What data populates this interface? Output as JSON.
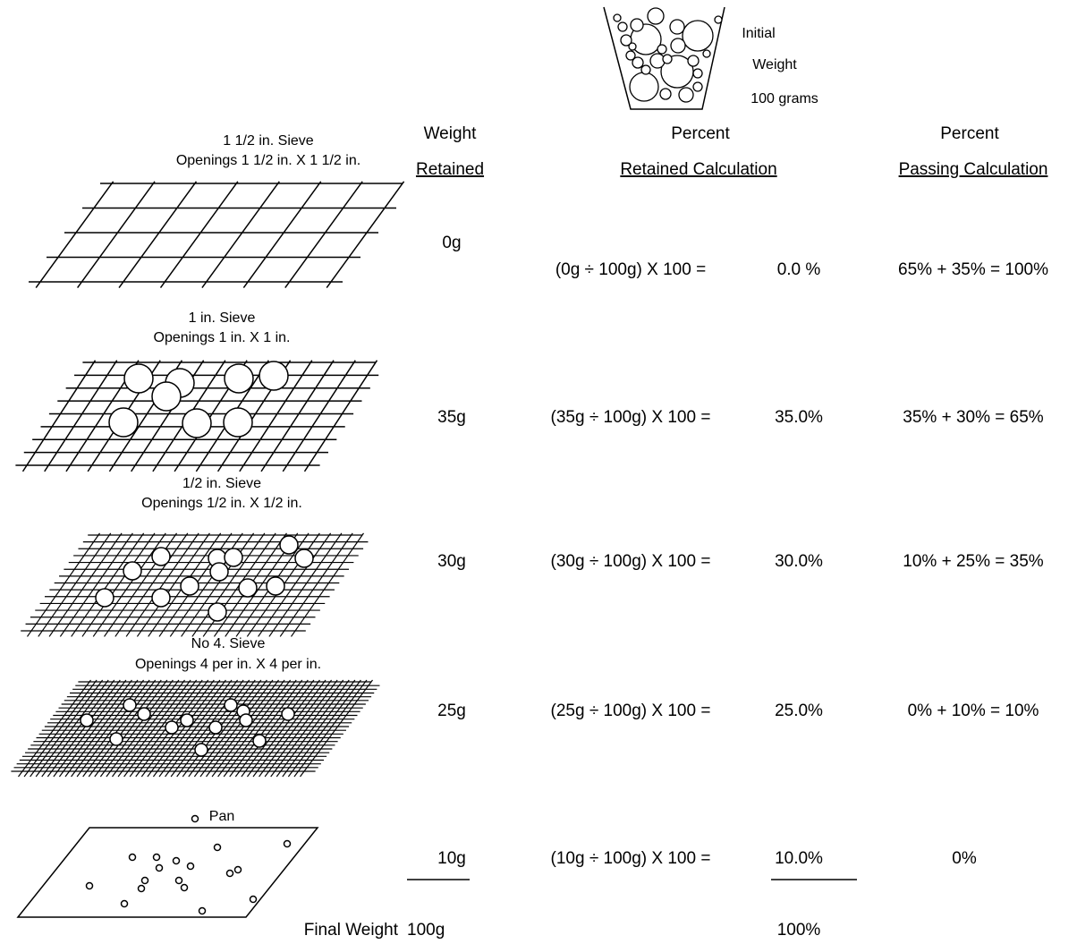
{
  "beaker": {
    "lines": [
      "Initial",
      "Weight",
      "100 grams"
    ]
  },
  "headers": {
    "weight": [
      "Weight",
      "Retained"
    ],
    "retained": [
      "Percent",
      "Retained Calculation"
    ],
    "passing": [
      "Percent",
      "Passing Calculation"
    ]
  },
  "sieves": [
    {
      "name": "1 1/2 in. Sieve",
      "openings": "Openings 1 1/2 in. X 1 1/2 in.",
      "retained": "0g",
      "calculation": "(0g ÷ 100g) X 100 =",
      "percent_retained": "0.0 %",
      "passing": "65% + 35% = 100%"
    },
    {
      "name": "1 in. Sieve",
      "openings": "Openings 1 in. X 1 in.",
      "retained": "35g",
      "calculation": "(35g ÷ 100g) X 100 =",
      "percent_retained": "35.0%",
      "passing": "35% + 30%  =  65%"
    },
    {
      "name": "1/2 in. Sieve",
      "openings": "Openings 1/2 in. X 1/2 in.",
      "retained": "30g",
      "calculation": "(30g ÷ 100g) X 100 =",
      "percent_retained": "30.0%",
      "passing": "10% + 25%  =  35%"
    },
    {
      "name": "No 4. Sieve",
      "openings": "Openings 4 per in. X 4 per in.",
      "retained": "25g",
      "calculation": "(25g ÷ 100g) X 100 =",
      "percent_retained": "25.0%",
      "passing": "0% + 10%  =  10%"
    },
    {
      "name": "Pan",
      "retained": "10g",
      "calculation": "(10g ÷ 100g) X 100 =",
      "percent_retained": "10.0%",
      "passing": "0%"
    }
  ],
  "totals": {
    "label": "Final Weight",
    "weight": "100g",
    "percent": "100%"
  }
}
